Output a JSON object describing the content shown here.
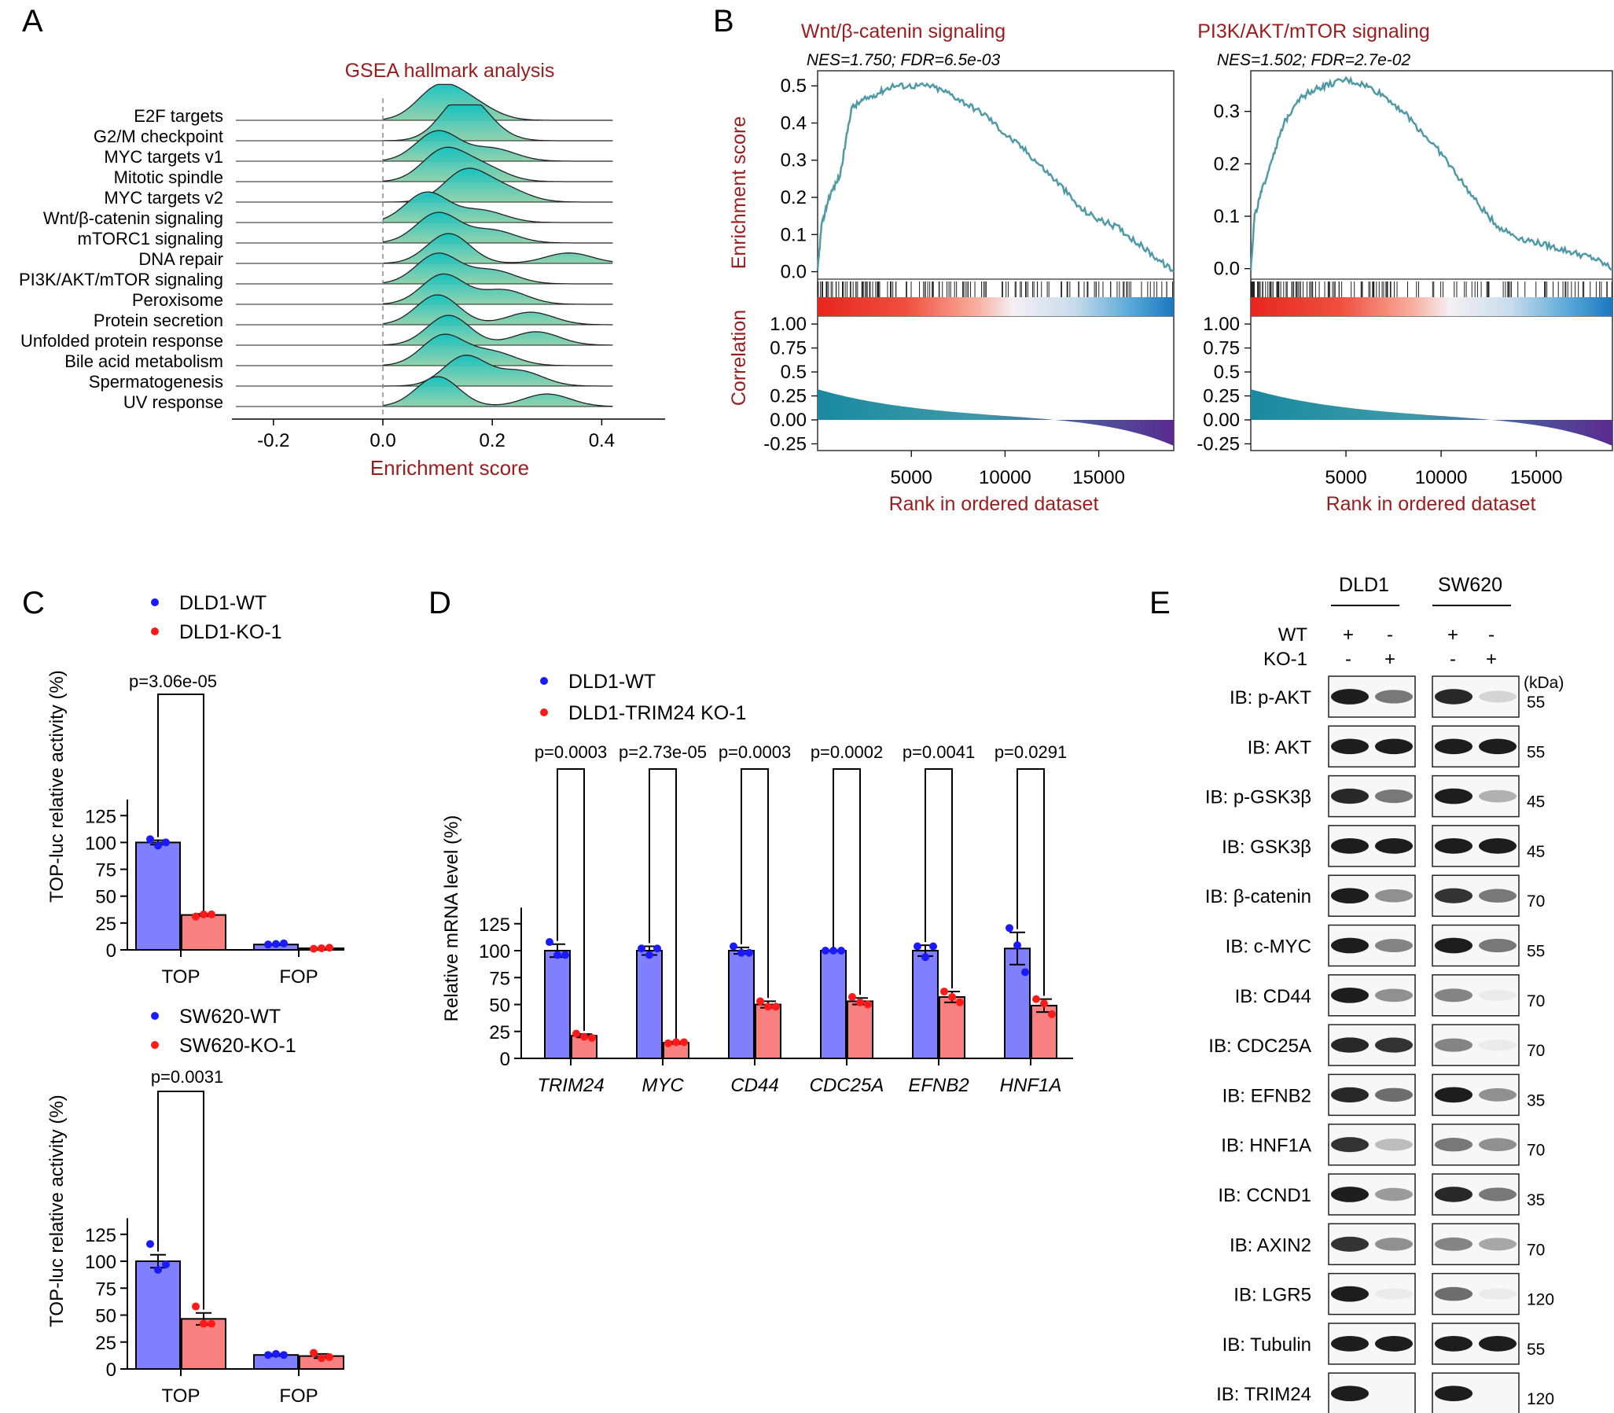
{
  "colors": {
    "dark_red": "#9b1c1c",
    "teal_top": "#12c2c0",
    "teal_bottom": "#8fcfa8",
    "gsea_line": "#4f9aa6",
    "wt_bar": "#8080ff",
    "ko_bar": "#f88080",
    "wt_dot": "#1a1aff",
    "ko_dot": "#ff1a1a",
    "corr_left": "#1a8aa0",
    "corr_right": "#5a2a90"
  },
  "panels": {
    "A": {
      "letter": "A",
      "title": "GSEA hallmark analysis",
      "xlabel": "Enrichment score",
      "xticks": [
        "-0.2",
        "0.0",
        "0.2",
        "0.4"
      ],
      "pathways": [
        "E2F targets",
        "G2/M checkpoint",
        "MYC targets v1",
        "Mitotic spindle",
        "MYC targets v2",
        "Wnt/β-catenin signaling",
        "mTORC1 signaling",
        "DNA repair",
        "PI3K/AKT/mTOR signaling",
        "Peroxisome",
        "Protein secretion",
        "Unfolded protein response",
        "Bile acid metabolism",
        "Spermatogenesis",
        "UV response"
      ]
    },
    "B": {
      "letter": "B",
      "left": {
        "title": "Wnt/β-catenin signaling",
        "subtitle": "NES=1.750; FDR=6.5e-03",
        "yticks": [
          "0.5",
          "0.4",
          "0.3",
          "0.2",
          "0.1",
          "0.0"
        ]
      },
      "right": {
        "title": "PI3K/AKT/mTOR signaling",
        "subtitle": "NES=1.502; FDR=2.7e-02",
        "yticks": [
          "0.3",
          "0.2",
          "0.1",
          "0.0"
        ]
      },
      "ylabel_top": "Enrichment score",
      "ylabel_bottom": "Correlation",
      "corr_ticks": [
        "1.00",
        "0.75",
        "0.5",
        "0.25",
        "0.00",
        "-0.25"
      ],
      "xticks": [
        "5000",
        "10000",
        "15000"
      ],
      "xlabel": "Rank in ordered dataset"
    },
    "C": {
      "letter": "C",
      "ylabel": "TOP-luc relative activity (%)",
      "yticks": [
        "0",
        "25",
        "50",
        "75",
        "100",
        "125"
      ],
      "categories": [
        "TOP",
        "FOP"
      ],
      "top_legend": [
        "DLD1-WT",
        "DLD1-KO-1"
      ],
      "top_p": "p=3.06e-05",
      "bottom_legend": [
        "SW620-WT",
        "SW620-KO-1"
      ],
      "bottom_p": "p=0.0031"
    },
    "D": {
      "letter": "D",
      "ylabel": "Relative mRNA level (%)",
      "yticks": [
        "0",
        "25",
        "50",
        "75",
        "100",
        "125"
      ],
      "legend": [
        "DLD1-WT",
        "DLD1-TRIM24 KO-1"
      ],
      "genes": [
        "TRIM24",
        "MYC",
        "CD44",
        "CDC25A",
        "EFNB2",
        "HNF1A"
      ],
      "pvalues": [
        "p=0.0003",
        "p=2.73e-05",
        "p=0.0003",
        "p=0.0002",
        "p=0.0041",
        "p=0.0291"
      ]
    },
    "E": {
      "letter": "E",
      "cell_lines": [
        "DLD1",
        "SW620"
      ],
      "row_labels": [
        "WT",
        "KO-1"
      ],
      "wt_signs": [
        "+",
        "-",
        "+",
        "-"
      ],
      "ko_signs": [
        "-",
        "+",
        "-",
        "+"
      ],
      "kda": "(kDa)",
      "blots": [
        {
          "label": "IB: p-AKT",
          "kda": "55"
        },
        {
          "label": "IB: AKT",
          "kda": "55"
        },
        {
          "label": "IB: p-GSK3β",
          "kda": "45"
        },
        {
          "label": "IB: GSK3β",
          "kda": "45"
        },
        {
          "label": "IB: β-catenin",
          "kda": "70"
        },
        {
          "label": "IB: c-MYC",
          "kda": "55"
        },
        {
          "label": "IB: CD44",
          "kda": "70"
        },
        {
          "label": "IB: CDC25A",
          "kda": "70"
        },
        {
          "label": "IB: EFNB2",
          "kda": "35"
        },
        {
          "label": "IB: HNF1A",
          "kda": "70"
        },
        {
          "label": "IB: CCND1",
          "kda": "35"
        },
        {
          "label": "IB: AXIN2",
          "kda": "70"
        },
        {
          "label": "IB: LGR5",
          "kda": "120"
        },
        {
          "label": "IB: Tubulin",
          "kda": "55"
        },
        {
          "label": "IB: TRIM24",
          "kda": "120"
        }
      ]
    }
  },
  "chart_data": [
    {
      "panel": "C-top",
      "type": "bar",
      "categories": [
        "TOP",
        "FOP"
      ],
      "ylabel": "TOP-luc relative activity (%)",
      "ylim": [
        0,
        140
      ],
      "series": [
        {
          "name": "DLD1-WT",
          "values": [
            100,
            5
          ],
          "error": [
            2,
            0.5
          ],
          "points": [
            [
              103,
              97,
              100
            ],
            [
              5,
              5.5,
              6
            ]
          ]
        },
        {
          "name": "DLD1-KO-1",
          "values": [
            32.5,
            1.5
          ],
          "error": [
            1,
            0.3
          ],
          "points": [
            [
              31,
              33,
              33
            ],
            [
              1,
              1.5,
              2
            ]
          ]
        }
      ]
    },
    {
      "panel": "C-bottom",
      "type": "bar",
      "categories": [
        "TOP",
        "FOP"
      ],
      "ylabel": "TOP-luc relative activity (%)",
      "ylim": [
        0,
        140
      ],
      "series": [
        {
          "name": "SW620-WT",
          "values": [
            100,
            13
          ],
          "error": [
            6,
            1
          ],
          "points": [
            [
              116,
              92,
              97
            ],
            [
              13,
              14,
              13
            ]
          ]
        },
        {
          "name": "SW620-KO-1",
          "values": [
            46.5,
            12
          ],
          "error": [
            5.5,
            2
          ],
          "points": [
            [
              58,
              42,
              42
            ],
            [
              15,
              10,
              11
            ]
          ]
        }
      ]
    },
    {
      "panel": "D",
      "type": "bar",
      "categories": [
        "TRIM24",
        "MYC",
        "CD44",
        "CDC25A",
        "EFNB2",
        "HNF1A"
      ],
      "ylabel": "Relative mRNA level (%)",
      "ylim": [
        0,
        140
      ],
      "series": [
        {
          "name": "DLD1-WT",
          "values": [
            100,
            100,
            100,
            100,
            100,
            102
          ],
          "error": [
            6,
            4,
            3,
            0.3,
            5,
            15
          ],
          "points": [
            [
              108,
              96,
              96
            ],
            [
              102,
              96,
              102
            ],
            [
              104,
              98,
              98
            ],
            [
              100,
              100,
              100
            ],
            [
              104,
              94,
              104
            ],
            [
              121,
              105,
              80
            ]
          ]
        },
        {
          "name": "DLD1-TRIM24 KO-1",
          "values": [
            21,
            14.5,
            50,
            53,
            57,
            49
          ],
          "error": [
            1.5,
            1,
            3,
            3,
            5,
            6
          ],
          "points": [
            [
              23,
              20,
              19
            ],
            [
              14,
              15,
              15
            ],
            [
              53,
              48,
              48
            ],
            [
              57,
              52,
              50
            ],
            [
              62,
              57,
              52
            ],
            [
              55,
              51,
              41
            ]
          ]
        }
      ]
    },
    {
      "panel": "B-left",
      "type": "line",
      "title": "Wnt/β-catenin signaling",
      "xlabel": "Rank in ordered dataset",
      "ylabel": "Enrichment score",
      "xlim": [
        0,
        19000
      ],
      "ylim": [
        -0.02,
        0.53
      ],
      "x": [
        0,
        200,
        600,
        1200,
        1800,
        2400,
        3200,
        4000,
        5000,
        6000,
        7000,
        8000,
        9000,
        10000,
        11000,
        12000,
        13000,
        14000,
        15000,
        16000,
        17000,
        18000,
        19000
      ],
      "y": [
        0.0,
        0.12,
        0.2,
        0.26,
        0.44,
        0.46,
        0.48,
        0.5,
        0.5,
        0.5,
        0.48,
        0.45,
        0.42,
        0.37,
        0.33,
        0.28,
        0.23,
        0.17,
        0.14,
        0.12,
        0.08,
        0.04,
        0.0
      ]
    },
    {
      "panel": "B-right",
      "type": "line",
      "title": "PI3K/AKT/mTOR signaling",
      "xlabel": "Rank in ordered dataset",
      "ylabel": "Enrichment score",
      "xlim": [
        0,
        19000
      ],
      "ylim": [
        -0.02,
        0.37
      ],
      "x": [
        0,
        200,
        600,
        1200,
        1800,
        2400,
        3200,
        4000,
        5000,
        6000,
        7000,
        8000,
        9000,
        10000,
        11000,
        12000,
        13000,
        14000,
        15000,
        16000,
        17000,
        18000,
        19000
      ],
      "y": [
        0.0,
        0.1,
        0.15,
        0.22,
        0.28,
        0.32,
        0.34,
        0.35,
        0.36,
        0.35,
        0.33,
        0.3,
        0.26,
        0.22,
        0.17,
        0.12,
        0.08,
        0.06,
        0.05,
        0.04,
        0.03,
        0.02,
        0.0
      ]
    }
  ]
}
